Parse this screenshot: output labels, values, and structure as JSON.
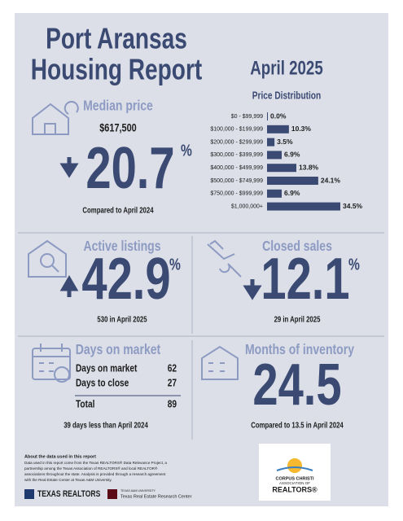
{
  "header": {
    "title_line1": "Port Aransas",
    "title_line2": "Housing Report",
    "period": "April 2025"
  },
  "median_price": {
    "label": "Median price",
    "price": "$617,500",
    "change": "20.7",
    "unit": "%",
    "comparison": "Compared to April 2024"
  },
  "chart_data": {
    "type": "bar",
    "title": "Price Distribution",
    "categories": [
      "$0 - $99,999",
      "$100,000 - $199,999",
      "$200,000 - $299,999",
      "$300,000 - $399,999",
      "$400,000 - $499,999",
      "$500,000 - $749,999",
      "$750,000 - $999,999",
      "$1,000,000+"
    ],
    "values": [
      0.0,
      10.3,
      3.5,
      6.9,
      13.8,
      24.1,
      6.9,
      34.5
    ],
    "value_labels": [
      "0.0%",
      "10.3%",
      "3.5%",
      "6.9%",
      "13.8%",
      "24.1%",
      "6.9%",
      "34.5%"
    ],
    "color": "#3b4a72",
    "orientation": "horizontal"
  },
  "active_listings": {
    "label": "Active listings",
    "change": "42.9",
    "unit": "%",
    "detail": "530 in April 2025"
  },
  "closed_sales": {
    "label": "Closed sales",
    "change": "12.1",
    "unit": "%",
    "detail": "29 in April 2025"
  },
  "days_on_market": {
    "label": "Days on market",
    "rows": [
      [
        "Days on market",
        "62"
      ],
      [
        "Days to close",
        "27"
      ],
      [
        "Total",
        "89"
      ]
    ],
    "comparison": "39 days less than April 2024"
  },
  "months_of_inventory": {
    "label": "Months of inventory",
    "value": "24.5",
    "comparison": "Compared to 13.5 in April 2024"
  },
  "footer": {
    "about_title": "About the data used in this report",
    "about_text": [
      "Data used in this report come from the Texas REALTORS® Data Relevance Project, a",
      "partnership among the Texas Association of REALTORS® and local REALTOR®",
      "associations throughout the state. Analysis is provided through a research agreement",
      "with the Real Estate Center at Texas A&M University."
    ],
    "logo_texas_realtors": "TEXAS REALTORS",
    "logo_tamu": "TEXAS A&M UNIVERSITY",
    "logo_recenter": "Texas Real Estate Research Center",
    "logo_cc_line1": "CORPUS CHRISTI",
    "logo_cc_line2": "ASSOCIATION OF",
    "logo_cc_line3": "REALTORS®"
  }
}
